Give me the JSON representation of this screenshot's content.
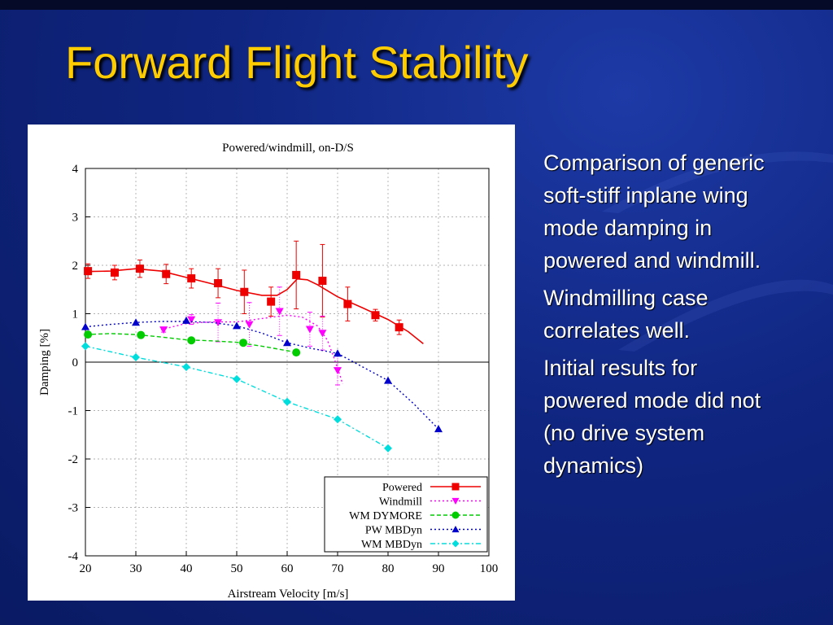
{
  "slide": {
    "title": "Forward Flight Stability",
    "bullets": [
      "Comparison of generic soft-stiff inplane wing mode damping in powered and windmill.",
      "Windmilling case correlates well.",
      "Initial results for powered mode did not (no drive system dynamics)"
    ],
    "colors": {
      "background": "#0f2580",
      "title": "#ffcc00",
      "text": "#ffffff"
    }
  },
  "chart_data": {
    "type": "line",
    "title": "Powered/windmill, on-D/S",
    "xlabel": "Airstream Velocity [m/s]",
    "ylabel": "Damping [%]",
    "xlim": [
      20,
      100
    ],
    "ylim": [
      -4,
      4
    ],
    "xticks": [
      "20",
      "30",
      "40",
      "50",
      "60",
      "70",
      "80",
      "90",
      "100"
    ],
    "yticks": [
      "-4",
      "-3",
      "-2",
      "-1",
      "0",
      "1",
      "2",
      "3",
      "4"
    ],
    "grid": true,
    "legend_position": "bottom-right",
    "series": [
      {
        "name": "Powered",
        "color": "#ee0000",
        "marker": "square",
        "line": "solid",
        "x": [
          20.5,
          25.8,
          30.8,
          36,
          41,
          46.3,
          51.5,
          56.8,
          61.8,
          67,
          72,
          77.5,
          82.2
        ],
        "y": [
          1.88,
          1.85,
          1.93,
          1.82,
          1.73,
          1.63,
          1.45,
          1.25,
          1.8,
          1.68,
          1.2,
          0.97,
          0.72
        ],
        "err": [
          0.15,
          0.15,
          0.18,
          0.2,
          0.2,
          0.3,
          0.45,
          0.3,
          0.7,
          0.75,
          0.35,
          0.12,
          0.15
        ],
        "curve": [
          [
            20,
            1.87
          ],
          [
            25,
            1.88
          ],
          [
            30,
            1.93
          ],
          [
            35,
            1.88
          ],
          [
            40,
            1.75
          ],
          [
            45,
            1.62
          ],
          [
            50,
            1.48
          ],
          [
            55,
            1.38
          ],
          [
            58,
            1.38
          ],
          [
            60,
            1.5
          ],
          [
            62,
            1.72
          ],
          [
            64,
            1.7
          ],
          [
            66,
            1.6
          ],
          [
            70,
            1.35
          ],
          [
            75,
            1.12
          ],
          [
            80,
            0.88
          ],
          [
            84,
            0.63
          ],
          [
            87,
            0.38
          ]
        ]
      },
      {
        "name": "Windmill",
        "color": "#ff00ff",
        "marker": "triangle-down",
        "line": "dotted",
        "x": [
          35.5,
          41,
          46.3,
          52.5,
          58.5,
          64.5,
          67,
          70
        ],
        "y": [
          0.67,
          0.88,
          0.82,
          0.78,
          1.05,
          0.68,
          0.6,
          -0.17
        ],
        "err": [
          0.05,
          0.1,
          0.4,
          0.45,
          0.5,
          0.35,
          0.35,
          0.3
        ],
        "curve": [
          [
            35,
            0.67
          ],
          [
            40,
            0.8
          ],
          [
            45,
            0.83
          ],
          [
            50,
            0.83
          ],
          [
            55,
            0.9
          ],
          [
            60,
            0.97
          ],
          [
            63,
            0.93
          ],
          [
            66,
            0.75
          ],
          [
            68,
            0.45
          ],
          [
            70,
            -0.12
          ],
          [
            71,
            -0.45
          ]
        ]
      },
      {
        "name": "WM DYMORE",
        "color": "#00cc00",
        "marker": "circle",
        "line": "dashed",
        "x": [
          20.5,
          31,
          41,
          51.3,
          61.8
        ],
        "y": [
          0.57,
          0.56,
          0.45,
          0.4,
          0.2
        ],
        "curve": [
          [
            20,
            0.57
          ],
          [
            25,
            0.59
          ],
          [
            30,
            0.57
          ],
          [
            35,
            0.52
          ],
          [
            40,
            0.46
          ],
          [
            45,
            0.44
          ],
          [
            50,
            0.41
          ],
          [
            55,
            0.33
          ],
          [
            62,
            0.2
          ]
        ]
      },
      {
        "name": "PW MBDyn",
        "color": "#0000cc",
        "marker": "triangle-up",
        "line": "dotted",
        "x": [
          20,
          30,
          40,
          50,
          60,
          70,
          80,
          90
        ],
        "y": [
          0.73,
          0.82,
          0.86,
          0.75,
          0.4,
          0.18,
          -0.38,
          -1.38
        ],
        "curve": [
          [
            20,
            0.73
          ],
          [
            25,
            0.78
          ],
          [
            30,
            0.82
          ],
          [
            35,
            0.84
          ],
          [
            40,
            0.84
          ],
          [
            45,
            0.82
          ],
          [
            50,
            0.75
          ],
          [
            55,
            0.6
          ],
          [
            60,
            0.4
          ],
          [
            65,
            0.28
          ],
          [
            70,
            0.18
          ],
          [
            75,
            -0.1
          ],
          [
            80,
            -0.38
          ],
          [
            85,
            -0.85
          ],
          [
            90,
            -1.38
          ]
        ]
      },
      {
        "name": "WM MBDyn",
        "color": "#00dddd",
        "marker": "diamond",
        "line": "dashdot",
        "x": [
          20,
          30,
          40,
          50,
          60,
          70,
          80
        ],
        "y": [
          0.33,
          0.1,
          -0.1,
          -0.35,
          -0.82,
          -1.18,
          -1.78
        ],
        "curve": [
          [
            20,
            0.33
          ],
          [
            30,
            0.1
          ],
          [
            40,
            -0.1
          ],
          [
            50,
            -0.35
          ],
          [
            60,
            -0.82
          ],
          [
            70,
            -1.18
          ],
          [
            80,
            -1.78
          ]
        ]
      }
    ]
  }
}
